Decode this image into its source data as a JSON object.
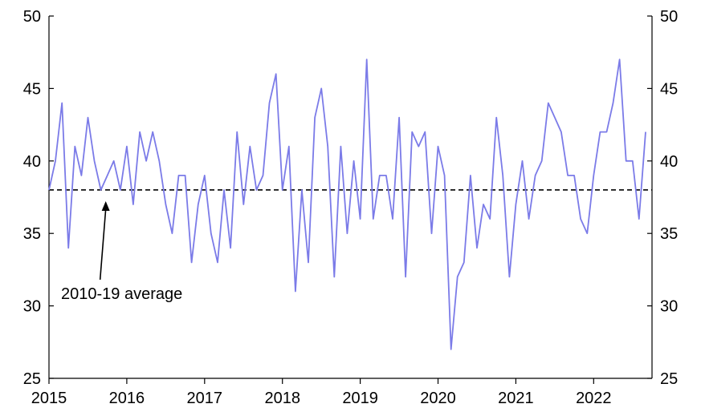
{
  "chart_data": {
    "type": "line",
    "title": "",
    "xlabel": "",
    "ylabel": "",
    "xlim": [
      2015,
      2022.75
    ],
    "ylim": [
      25,
      50
    ],
    "y_ticks": [
      25,
      30,
      35,
      40,
      45,
      50
    ],
    "y_tick_labels": [
      "25",
      "30",
      "35",
      "40",
      "45",
      "50"
    ],
    "x_ticks": [
      2015,
      2016,
      2017,
      2018,
      2019,
      2020,
      2021,
      2022
    ],
    "x_tick_labels": [
      "2015",
      "2016",
      "2017",
      "2018",
      "2019",
      "2020",
      "2021",
      "2022"
    ],
    "grid": false,
    "series": [
      {
        "color": "#7b7be8",
        "x": [
          2015.0,
          2015.083,
          2015.167,
          2015.25,
          2015.333,
          2015.417,
          2015.5,
          2015.583,
          2015.667,
          2015.75,
          2015.833,
          2015.917,
          2016.0,
          2016.083,
          2016.167,
          2016.25,
          2016.333,
          2016.417,
          2016.5,
          2016.583,
          2016.667,
          2016.75,
          2016.833,
          2016.917,
          2017.0,
          2017.083,
          2017.167,
          2017.25,
          2017.333,
          2017.417,
          2017.5,
          2017.583,
          2017.667,
          2017.75,
          2017.833,
          2017.917,
          2018.0,
          2018.083,
          2018.167,
          2018.25,
          2018.333,
          2018.417,
          2018.5,
          2018.583,
          2018.667,
          2018.75,
          2018.833,
          2018.917,
          2019.0,
          2019.083,
          2019.167,
          2019.25,
          2019.333,
          2019.417,
          2019.5,
          2019.583,
          2019.667,
          2019.75,
          2019.833,
          2019.917,
          2020.0,
          2020.083,
          2020.167,
          2020.25,
          2020.333,
          2020.417,
          2020.5,
          2020.583,
          2020.667,
          2020.75,
          2020.833,
          2020.917,
          2021.0,
          2021.083,
          2021.167,
          2021.25,
          2021.333,
          2021.417,
          2021.5,
          2021.583,
          2021.667,
          2021.75,
          2021.833,
          2021.917,
          2022.0,
          2022.083,
          2022.167,
          2022.25,
          2022.333,
          2022.417,
          2022.5,
          2022.583,
          2022.667
        ],
        "values": [
          38,
          40,
          44,
          34,
          41,
          39,
          43,
          40,
          38,
          39,
          40,
          38,
          41,
          37,
          42,
          40,
          42,
          40,
          37,
          35,
          39,
          39,
          33,
          37,
          39,
          35,
          33,
          38,
          34,
          42,
          37,
          41,
          38,
          39,
          44,
          46,
          38,
          41,
          31,
          38,
          33,
          43,
          45,
          41,
          32,
          41,
          35,
          40,
          36,
          47,
          36,
          39,
          39,
          36,
          43,
          32,
          42,
          41,
          42,
          35,
          41,
          39,
          27,
          32,
          33,
          39,
          34,
          37,
          36,
          43,
          39,
          32,
          37,
          40,
          36,
          39,
          40,
          44,
          43,
          42,
          39,
          39,
          36,
          35,
          39,
          42,
          42,
          44,
          47,
          40,
          40,
          36,
          42
        ]
      }
    ],
    "reference_line": {
      "value": 38,
      "style": "dashed",
      "color": "#000000"
    },
    "annotation": {
      "text": "2010-19 average",
      "x": 2015.75,
      "y": 38
    }
  }
}
